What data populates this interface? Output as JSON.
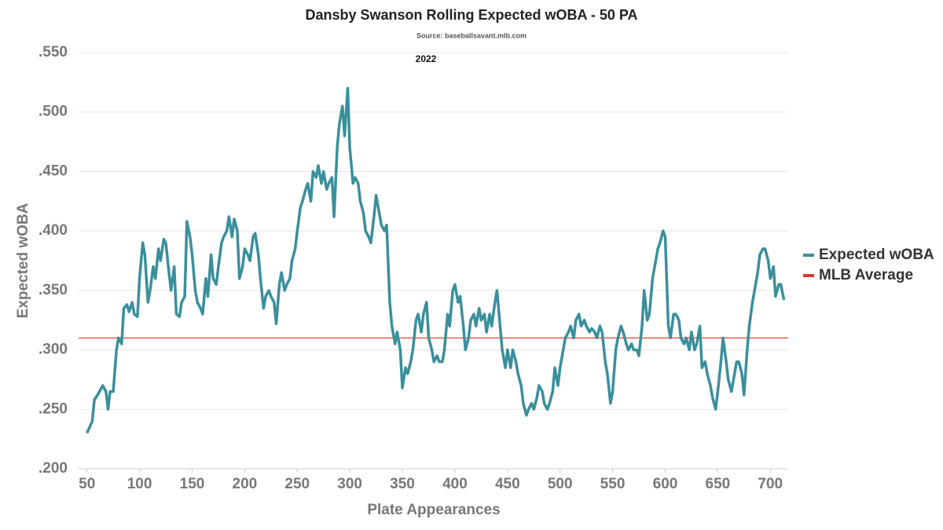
{
  "chart_data": {
    "type": "line",
    "title": "Dansby Swanson Rolling Expected wOBA - 50 PA",
    "subtitle": "Source: baseballsavant.mlb.com",
    "annotation": "2022",
    "x_label": "Plate Appearances",
    "y_label": "Expected wOBA",
    "xlim": [
      42,
      717
    ],
    "ylim": [
      0.2,
      0.55
    ],
    "xticks": [
      50,
      100,
      150,
      200,
      250,
      300,
      350,
      400,
      450,
      500,
      550,
      600,
      650,
      700
    ],
    "yticks": [
      {
        "value": 0.2,
        "label": ".200"
      },
      {
        "value": 0.25,
        "label": ".250"
      },
      {
        "value": 0.3,
        "label": ".300"
      },
      {
        "value": 0.35,
        "label": ".350"
      },
      {
        "value": 0.4,
        "label": ".400"
      },
      {
        "value": 0.45,
        "label": ".450"
      },
      {
        "value": 0.5,
        "label": ".500"
      },
      {
        "value": 0.55,
        "label": ".550"
      }
    ],
    "grid": true,
    "legend": "right",
    "x": [
      50,
      55,
      57,
      60,
      65,
      68,
      70,
      72,
      75,
      78,
      80,
      83,
      85,
      88,
      90,
      93,
      95,
      98,
      100,
      103,
      105,
      108,
      110,
      113,
      115,
      118,
      120,
      123,
      125,
      128,
      130,
      133,
      135,
      138,
      140,
      143,
      145,
      148,
      150,
      153,
      155,
      158,
      160,
      163,
      165,
      168,
      170,
      173,
      175,
      178,
      180,
      183,
      185,
      188,
      190,
      193,
      195,
      198,
      200,
      203,
      205,
      208,
      210,
      213,
      215,
      218,
      220,
      223,
      225,
      228,
      230,
      233,
      235,
      238,
      240,
      243,
      245,
      248,
      250,
      253,
      255,
      258,
      260,
      263,
      265,
      268,
      270,
      273,
      275,
      278,
      280,
      283,
      285,
      288,
      290,
      293,
      295,
      298,
      300,
      303,
      305,
      308,
      310,
      313,
      315,
      318,
      320,
      323,
      325,
      328,
      330,
      333,
      335,
      338,
      340,
      343,
      345,
      348,
      350,
      353,
      355,
      358,
      360,
      363,
      365,
      368,
      370,
      373,
      375,
      378,
      380,
      383,
      385,
      388,
      390,
      393,
      395,
      398,
      400,
      403,
      405,
      408,
      410,
      413,
      415,
      418,
      420,
      423,
      425,
      428,
      430,
      433,
      435,
      438,
      440,
      443,
      445,
      448,
      450,
      453,
      455,
      458,
      460,
      463,
      465,
      468,
      470,
      473,
      475,
      478,
      480,
      483,
      485,
      488,
      490,
      493,
      495,
      498,
      500,
      503,
      505,
      508,
      510,
      513,
      515,
      518,
      520,
      523,
      525,
      528,
      530,
      533,
      535,
      538,
      540,
      543,
      545,
      548,
      550,
      553,
      555,
      558,
      560,
      563,
      565,
      568,
      570,
      573,
      575,
      578,
      580,
      583,
      585,
      588,
      590,
      593,
      595,
      598,
      600,
      603,
      605,
      608,
      610,
      613,
      615,
      618,
      620,
      623,
      625,
      628,
      630,
      633,
      635,
      638,
      640,
      643,
      645,
      648,
      650,
      653,
      655,
      658,
      660,
      663,
      665,
      668,
      670,
      673,
      675,
      678,
      680,
      683,
      685,
      688,
      690,
      693,
      695,
      698,
      700,
      703,
      705,
      708,
      710,
      713
    ],
    "series": [
      {
        "name": "Expected wOBA",
        "color": "#3a8f9c",
        "values": [
          0.23,
          0.24,
          0.258,
          0.262,
          0.27,
          0.265,
          0.25,
          0.265,
          0.265,
          0.3,
          0.31,
          0.305,
          0.335,
          0.338,
          0.332,
          0.34,
          0.33,
          0.328,
          0.36,
          0.39,
          0.38,
          0.34,
          0.35,
          0.37,
          0.36,
          0.385,
          0.375,
          0.393,
          0.39,
          0.365,
          0.35,
          0.37,
          0.33,
          0.328,
          0.34,
          0.345,
          0.408,
          0.395,
          0.38,
          0.35,
          0.34,
          0.335,
          0.33,
          0.36,
          0.345,
          0.38,
          0.36,
          0.355,
          0.37,
          0.39,
          0.395,
          0.4,
          0.412,
          0.395,
          0.41,
          0.4,
          0.36,
          0.37,
          0.385,
          0.38,
          0.375,
          0.395,
          0.398,
          0.38,
          0.36,
          0.335,
          0.345,
          0.35,
          0.345,
          0.34,
          0.322,
          0.355,
          0.365,
          0.35,
          0.355,
          0.36,
          0.375,
          0.385,
          0.4,
          0.42,
          0.425,
          0.435,
          0.44,
          0.425,
          0.45,
          0.445,
          0.455,
          0.44,
          0.45,
          0.435,
          0.44,
          0.445,
          0.412,
          0.47,
          0.49,
          0.505,
          0.48,
          0.52,
          0.47,
          0.44,
          0.445,
          0.44,
          0.425,
          0.415,
          0.4,
          0.395,
          0.39,
          0.412,
          0.43,
          0.415,
          0.405,
          0.4,
          0.405,
          0.34,
          0.32,
          0.305,
          0.315,
          0.3,
          0.268,
          0.285,
          0.28,
          0.29,
          0.3,
          0.325,
          0.33,
          0.315,
          0.33,
          0.34,
          0.31,
          0.3,
          0.29,
          0.295,
          0.29,
          0.29,
          0.3,
          0.33,
          0.32,
          0.35,
          0.355,
          0.34,
          0.345,
          0.32,
          0.3,
          0.31,
          0.325,
          0.33,
          0.32,
          0.335,
          0.325,
          0.33,
          0.315,
          0.33,
          0.32,
          0.34,
          0.35,
          0.32,
          0.3,
          0.285,
          0.3,
          0.285,
          0.3,
          0.29,
          0.28,
          0.27,
          0.255,
          0.245,
          0.25,
          0.255,
          0.25,
          0.26,
          0.27,
          0.265,
          0.255,
          0.25,
          0.255,
          0.265,
          0.285,
          0.27,
          0.285,
          0.3,
          0.31,
          0.315,
          0.32,
          0.31,
          0.325,
          0.33,
          0.32,
          0.325,
          0.32,
          0.315,
          0.318,
          0.315,
          0.31,
          0.32,
          0.315,
          0.29,
          0.28,
          0.255,
          0.265,
          0.3,
          0.31,
          0.32,
          0.315,
          0.305,
          0.3,
          0.305,
          0.3,
          0.3,
          0.295,
          0.32,
          0.35,
          0.325,
          0.33,
          0.36,
          0.37,
          0.385,
          0.39,
          0.4,
          0.395,
          0.32,
          0.31,
          0.33,
          0.33,
          0.325,
          0.31,
          0.305,
          0.31,
          0.3,
          0.315,
          0.3,
          0.305,
          0.32,
          0.285,
          0.29,
          0.28,
          0.27,
          0.26,
          0.25,
          0.265,
          0.29,
          0.31,
          0.29,
          0.275,
          0.265,
          0.275,
          0.29,
          0.29,
          0.28,
          0.262,
          0.3,
          0.32,
          0.34,
          0.35,
          0.365,
          0.38,
          0.385,
          0.385,
          0.375,
          0.36,
          0.37,
          0.345,
          0.355,
          0.355,
          0.342
        ]
      }
    ],
    "reference_lines": [
      {
        "name": "MLB Average",
        "value": 0.31,
        "color": "#d9372b"
      }
    ]
  }
}
